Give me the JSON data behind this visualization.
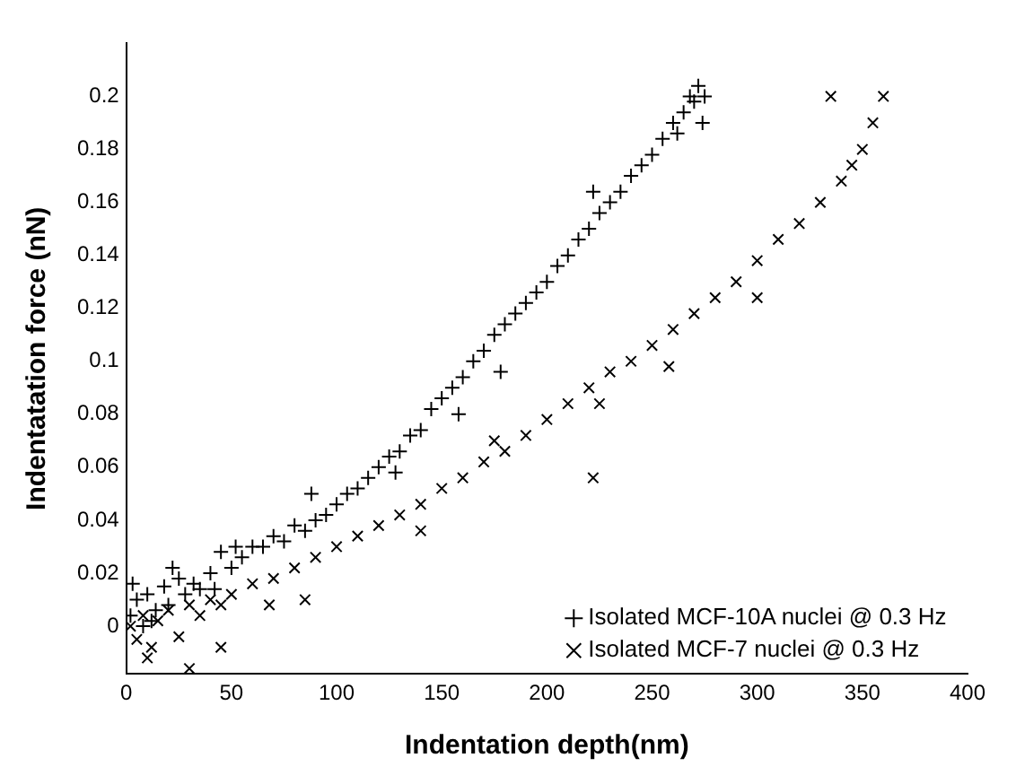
{
  "chart_data": {
    "type": "scatter",
    "xlabel": "Indentation depth(nm)",
    "ylabel": "Indentatation force (nN)",
    "xlim": [
      0,
      400
    ],
    "xticks": [
      0,
      50,
      100,
      150,
      200,
      250,
      300,
      350,
      400
    ],
    "ylim": [
      -0.018,
      0.22
    ],
    "yticks": [
      0,
      0.02,
      0.04,
      0.06,
      0.08,
      0.1,
      0.12,
      0.14,
      0.16,
      0.18,
      0.2
    ],
    "grid": false,
    "legend": "bottom right",
    "series": [
      {
        "name": "Isolated MCF-10A nuclei @ 0.3 Hz",
        "color": "#000000",
        "marker": "cross",
        "x": [
          2,
          5,
          8,
          10,
          14,
          18,
          20,
          25,
          28,
          32,
          35,
          40,
          45,
          50,
          55,
          60,
          65,
          70,
          75,
          80,
          85,
          90,
          95,
          100,
          105,
          110,
          115,
          120,
          125,
          130,
          135,
          140,
          145,
          150,
          155,
          160,
          165,
          170,
          175,
          180,
          185,
          190,
          195,
          200,
          205,
          210,
          215,
          220,
          225,
          230,
          235,
          240,
          245,
          250,
          255,
          260,
          265,
          268,
          270,
          272,
          275,
          3,
          12,
          22,
          42,
          52,
          88,
          128,
          158,
          178,
          222,
          262,
          274
        ],
        "values": [
          0.004,
          0.01,
          0.0,
          0.012,
          0.006,
          0.015,
          0.008,
          0.018,
          0.012,
          0.016,
          0.014,
          0.02,
          0.028,
          0.022,
          0.026,
          0.03,
          0.03,
          0.034,
          0.032,
          0.038,
          0.036,
          0.04,
          0.042,
          0.046,
          0.05,
          0.052,
          0.056,
          0.06,
          0.064,
          0.066,
          0.072,
          0.074,
          0.082,
          0.086,
          0.09,
          0.094,
          0.1,
          0.104,
          0.11,
          0.114,
          0.118,
          0.122,
          0.126,
          0.13,
          0.136,
          0.14,
          0.146,
          0.15,
          0.156,
          0.16,
          0.164,
          0.17,
          0.174,
          0.178,
          0.184,
          0.19,
          0.194,
          0.2,
          0.198,
          0.204,
          0.2,
          0.016,
          0.002,
          0.022,
          0.014,
          0.03,
          0.05,
          0.058,
          0.08,
          0.096,
          0.164,
          0.186,
          0.19
        ]
      },
      {
        "name": "Isolated MCF-7 nuclei @ 0.3 Hz",
        "color": "#000000",
        "marker": "x",
        "x": [
          2,
          5,
          8,
          12,
          15,
          20,
          25,
          30,
          35,
          40,
          45,
          50,
          60,
          70,
          80,
          90,
          100,
          110,
          120,
          130,
          140,
          150,
          160,
          170,
          180,
          190,
          200,
          210,
          220,
          230,
          240,
          250,
          260,
          270,
          280,
          290,
          300,
          310,
          320,
          330,
          340,
          345,
          350,
          355,
          360,
          10,
          30,
          45,
          68,
          85,
          140,
          175,
          222,
          225,
          258,
          300,
          335
        ],
        "values": [
          0.0,
          -0.005,
          0.004,
          -0.008,
          0.002,
          0.006,
          -0.004,
          0.008,
          0.004,
          0.01,
          0.008,
          0.012,
          0.016,
          0.018,
          0.022,
          0.026,
          0.03,
          0.034,
          0.038,
          0.042,
          0.046,
          0.052,
          0.056,
          0.062,
          0.066,
          0.072,
          0.078,
          0.084,
          0.09,
          0.096,
          0.1,
          0.106,
          0.112,
          0.118,
          0.124,
          0.13,
          0.138,
          0.146,
          0.152,
          0.16,
          0.168,
          0.174,
          0.18,
          0.19,
          0.2,
          -0.012,
          -0.016,
          -0.008,
          0.008,
          0.01,
          0.036,
          0.07,
          0.056,
          0.084,
          0.098,
          0.124,
          0.2
        ]
      }
    ]
  }
}
